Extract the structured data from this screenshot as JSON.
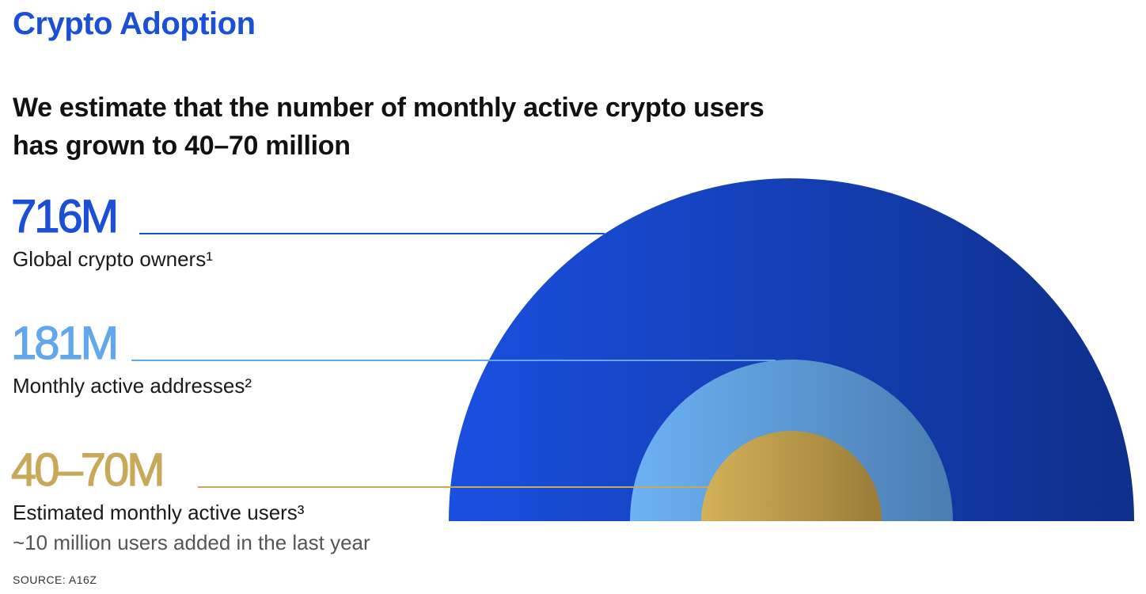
{
  "header": {
    "section_title": "Crypto Adoption",
    "headline_line1": "We estimate that the number of monthly active crypto users",
    "headline_line2": "has grown to 40–70 million"
  },
  "stats": [
    {
      "value": "716M",
      "label": "Global crypto owners¹",
      "color": "#1a4fd6"
    },
    {
      "value": "181M",
      "label": "Monthly active addresses²",
      "color": "#62a6ec"
    },
    {
      "value": "40–70M",
      "label": "Estimated monthly active users³",
      "note": "~10 million users added in the last year",
      "color": "#c8a95a"
    }
  ],
  "source": "SOURCE: A16Z",
  "chart_data": {
    "type": "nested-semicircle",
    "series": [
      {
        "name": "Global crypto owners",
        "value": 716,
        "unit": "M",
        "colors": [
          "#1a4fe0",
          "#0e2f8a"
        ]
      },
      {
        "name": "Monthly active addresses",
        "value": 181,
        "unit": "M",
        "colors": [
          "#6cb2f4",
          "#4a7db0"
        ]
      },
      {
        "name": "Estimated monthly active users",
        "value_range": [
          40,
          70
        ],
        "unit": "M",
        "colors": [
          "#d4b25a",
          "#9a7c38"
        ]
      }
    ]
  }
}
